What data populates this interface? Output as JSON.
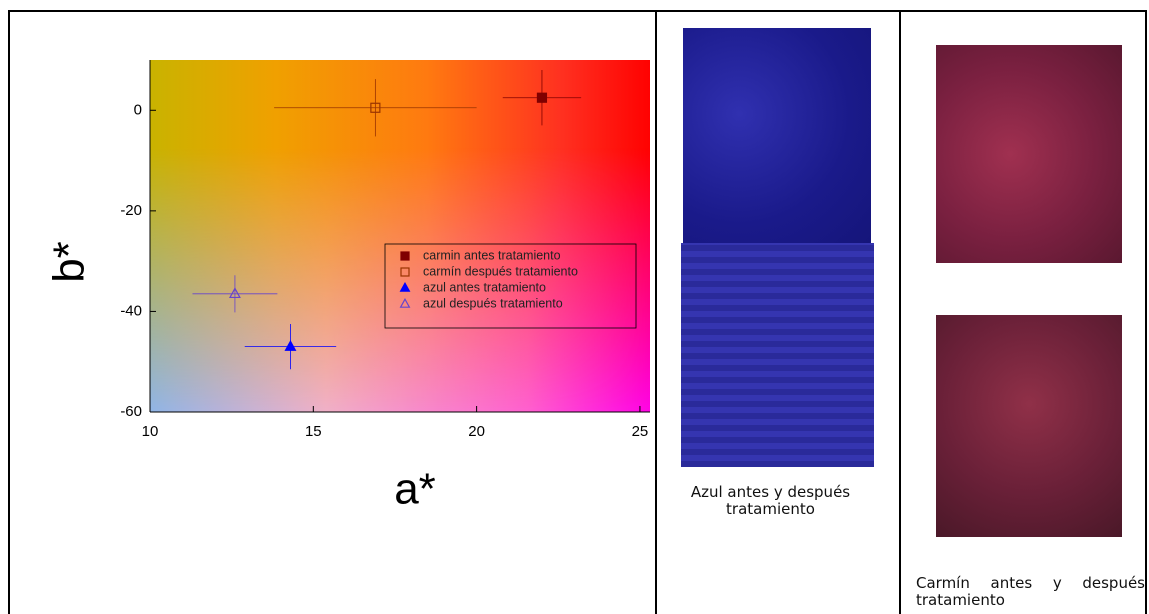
{
  "chart_data": {
    "type": "scatter",
    "xlabel": "a*",
    "ylabel": "b*",
    "xlim": [
      10,
      25.4
    ],
    "ylim": [
      -60,
      10
    ],
    "xticks": [
      10,
      15,
      20,
      25
    ],
    "yticks": [
      -60,
      -40,
      -20,
      0
    ],
    "legend": "center right",
    "series": [
      {
        "name": "carmin antes tratamiento",
        "color": "#800000",
        "marker": "square",
        "x": [
          22.0
        ],
        "y": [
          2.5
        ],
        "xerr": [
          1.2
        ],
        "yerr": [
          5.5
        ]
      },
      {
        "name": "carmín después tratamiento",
        "color": "#993300",
        "marker": "square-open",
        "x": [
          16.9
        ],
        "y": [
          0.5
        ],
        "xerr": [
          3.1
        ],
        "yerr": [
          5.7
        ]
      },
      {
        "name": "azul antes tratamiento",
        "color": "#0000ff",
        "marker": "triangle",
        "x": [
          14.3
        ],
        "y": [
          -47
        ],
        "xerr": [
          1.4
        ],
        "yerr": [
          4.5
        ]
      },
      {
        "name": "azul después tratamiento",
        "color": "#6644cc",
        "marker": "triangle-open",
        "x": [
          12.6
        ],
        "y": [
          -36.5
        ],
        "xerr": [
          1.3
        ],
        "yerr": [
          3.7
        ]
      }
    ]
  },
  "photos": [
    {
      "caption": "Azul antes y después tratamiento"
    },
    {
      "caption": "Carmín antes y después tratamiento"
    }
  ]
}
